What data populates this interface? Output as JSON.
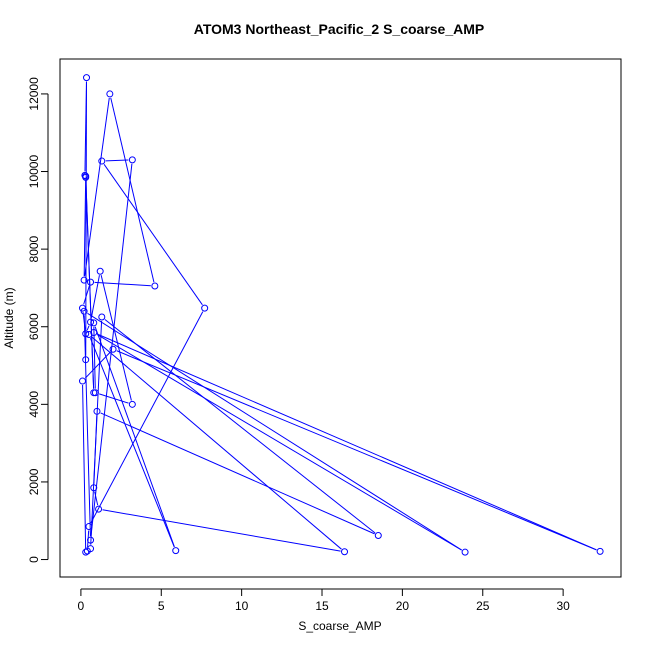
{
  "chart_data": {
    "type": "line",
    "title": "ATOM3 Northeast_Pacific_2 S_coarse_AMP",
    "xlabel": "S_coarse_AMP",
    "ylabel": "Altitude (m)",
    "xlim": [
      -1.3,
      33.6
    ],
    "ylim": [
      -450,
      12900
    ],
    "xticks": [
      0,
      5,
      10,
      15,
      20,
      25,
      30
    ],
    "yticks": [
      0,
      2000,
      4000,
      6000,
      8000,
      10000,
      12000
    ],
    "color": "#0000ff",
    "series": [
      {
        "markers": "open-circle",
        "x": [
          0.3,
          0.35,
          0.25,
          0.3,
          0.8,
          0.3,
          0.2,
          1.8,
          4.6,
          0.6,
          0.1,
          0.3,
          0.6,
          1.2,
          3.2,
          0.9,
          0.8,
          5.9,
          0.5,
          16.4,
          1.1,
          0.8,
          1.0,
          18.5,
          1.3,
          0.6,
          0.3,
          0.1,
          2.0,
          32.3,
          0.8,
          23.9,
          0.2,
          0.6,
          3.2,
          1.3,
          7.7,
          0.5,
          0.4
        ],
        "y": [
          5150,
          12420,
          9900,
          9850,
          4300,
          9880,
          7200,
          12000,
          7050,
          7150,
          6480,
          5820,
          6120,
          7430,
          4000,
          4300,
          6100,
          230,
          5800,
          200,
          1300,
          1850,
          3820,
          620,
          6250,
          280,
          190,
          4600,
          5420,
          210,
          5850,
          190,
          6400,
          500,
          10300,
          10270,
          6480,
          850,
          220
        ]
      }
    ]
  }
}
